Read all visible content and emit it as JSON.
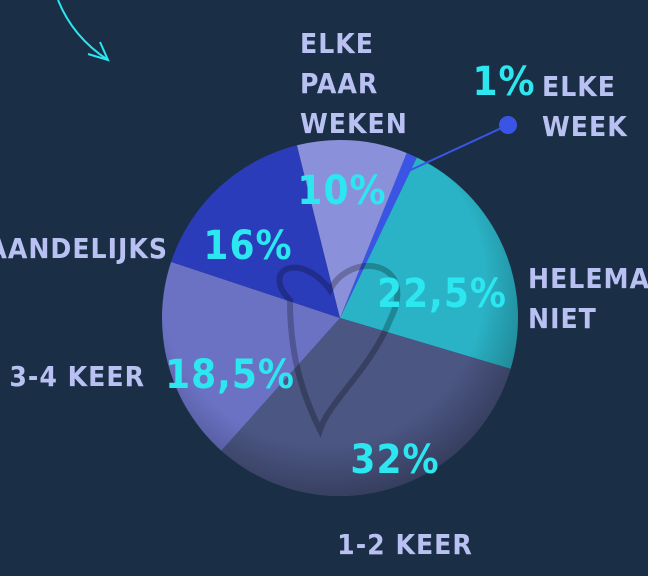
{
  "chart_data": {
    "type": "pie",
    "categories": [
      "ELKE WEEK",
      "HELEMAAL NIET",
      "1-2 KEER",
      "3-4 KEER",
      "MAANDELIJKS",
      "ELKE PAAR WEKEN"
    ],
    "values": [
      1,
      22.5,
      32,
      18.5,
      16,
      10
    ],
    "value_labels": [
      "1%",
      "22,5%",
      "32%",
      "18,5%",
      "16%",
      "10%"
    ],
    "colors": [
      "#3a55e6",
      "#2ab3c6",
      "#4b5683",
      "#6b72c4",
      "#2b3cbb",
      "#8b90da"
    ]
  }
}
